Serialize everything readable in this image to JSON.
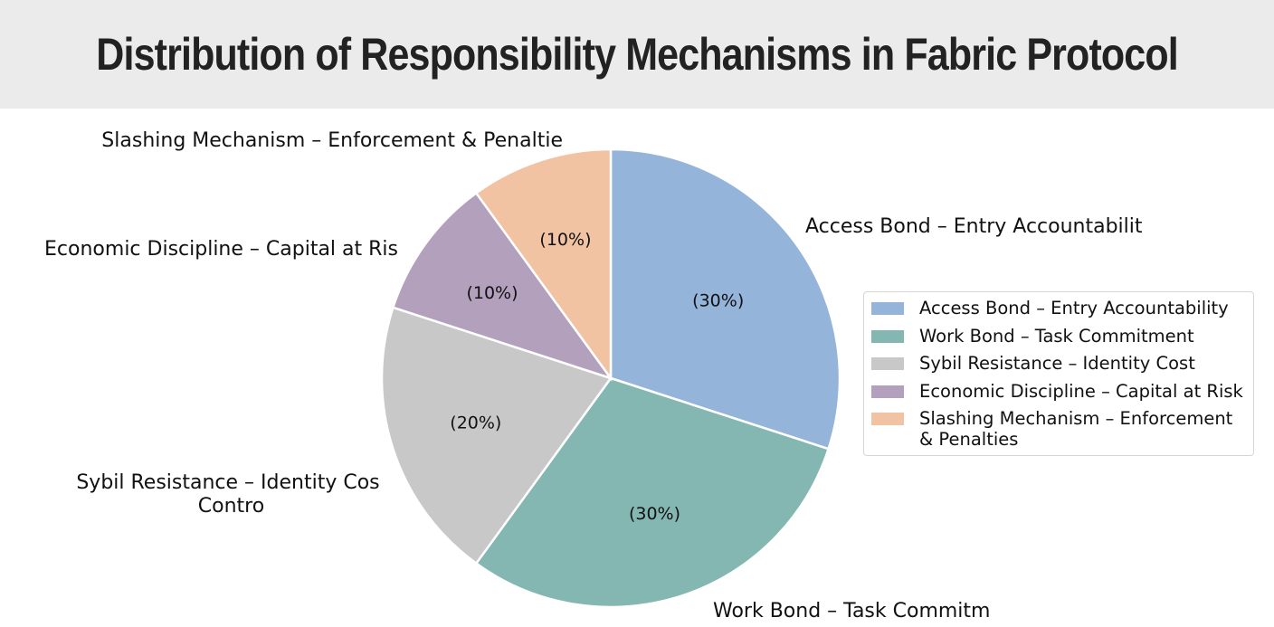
{
  "chart_data": {
    "type": "pie",
    "title": "Distribution of Responsibility Mechanisms in Fabric Protocol",
    "slices": [
      {
        "label": "Access Bond – Entry Accountability",
        "legend": "Access Bond – Entry Accountability",
        "value": 30,
        "value_label": "(30%)",
        "color": "#94b4da"
      },
      {
        "label": "Work Bond – Task Commitment",
        "legend": "Work Bond – Task Commitment",
        "value": 30,
        "value_label": "(30%)",
        "color": "#84b7b2"
      },
      {
        "label": "Sybil Resistance – Identity Cost Control",
        "legend": "Sybil Resistance – Identity Cost",
        "value": 20,
        "value_label": "(20%)",
        "color": "#c8c8c8"
      },
      {
        "label": "Economic Discipline – Capital at Risk",
        "legend": "Economic Discipline – Capital at Risk",
        "value": 10,
        "value_label": "(10%)",
        "color": "#b3a0bc"
      },
      {
        "label": "Slashing Mechanism – Enforcement & Penalties",
        "legend": "Slashing Mechanism – Enforcement & Penalties",
        "value": 10,
        "value_label": "(10%)",
        "color": "#f1c3a2"
      }
    ],
    "start": "12 o'clock",
    "direction": "clockwise",
    "legend_position": "right"
  }
}
